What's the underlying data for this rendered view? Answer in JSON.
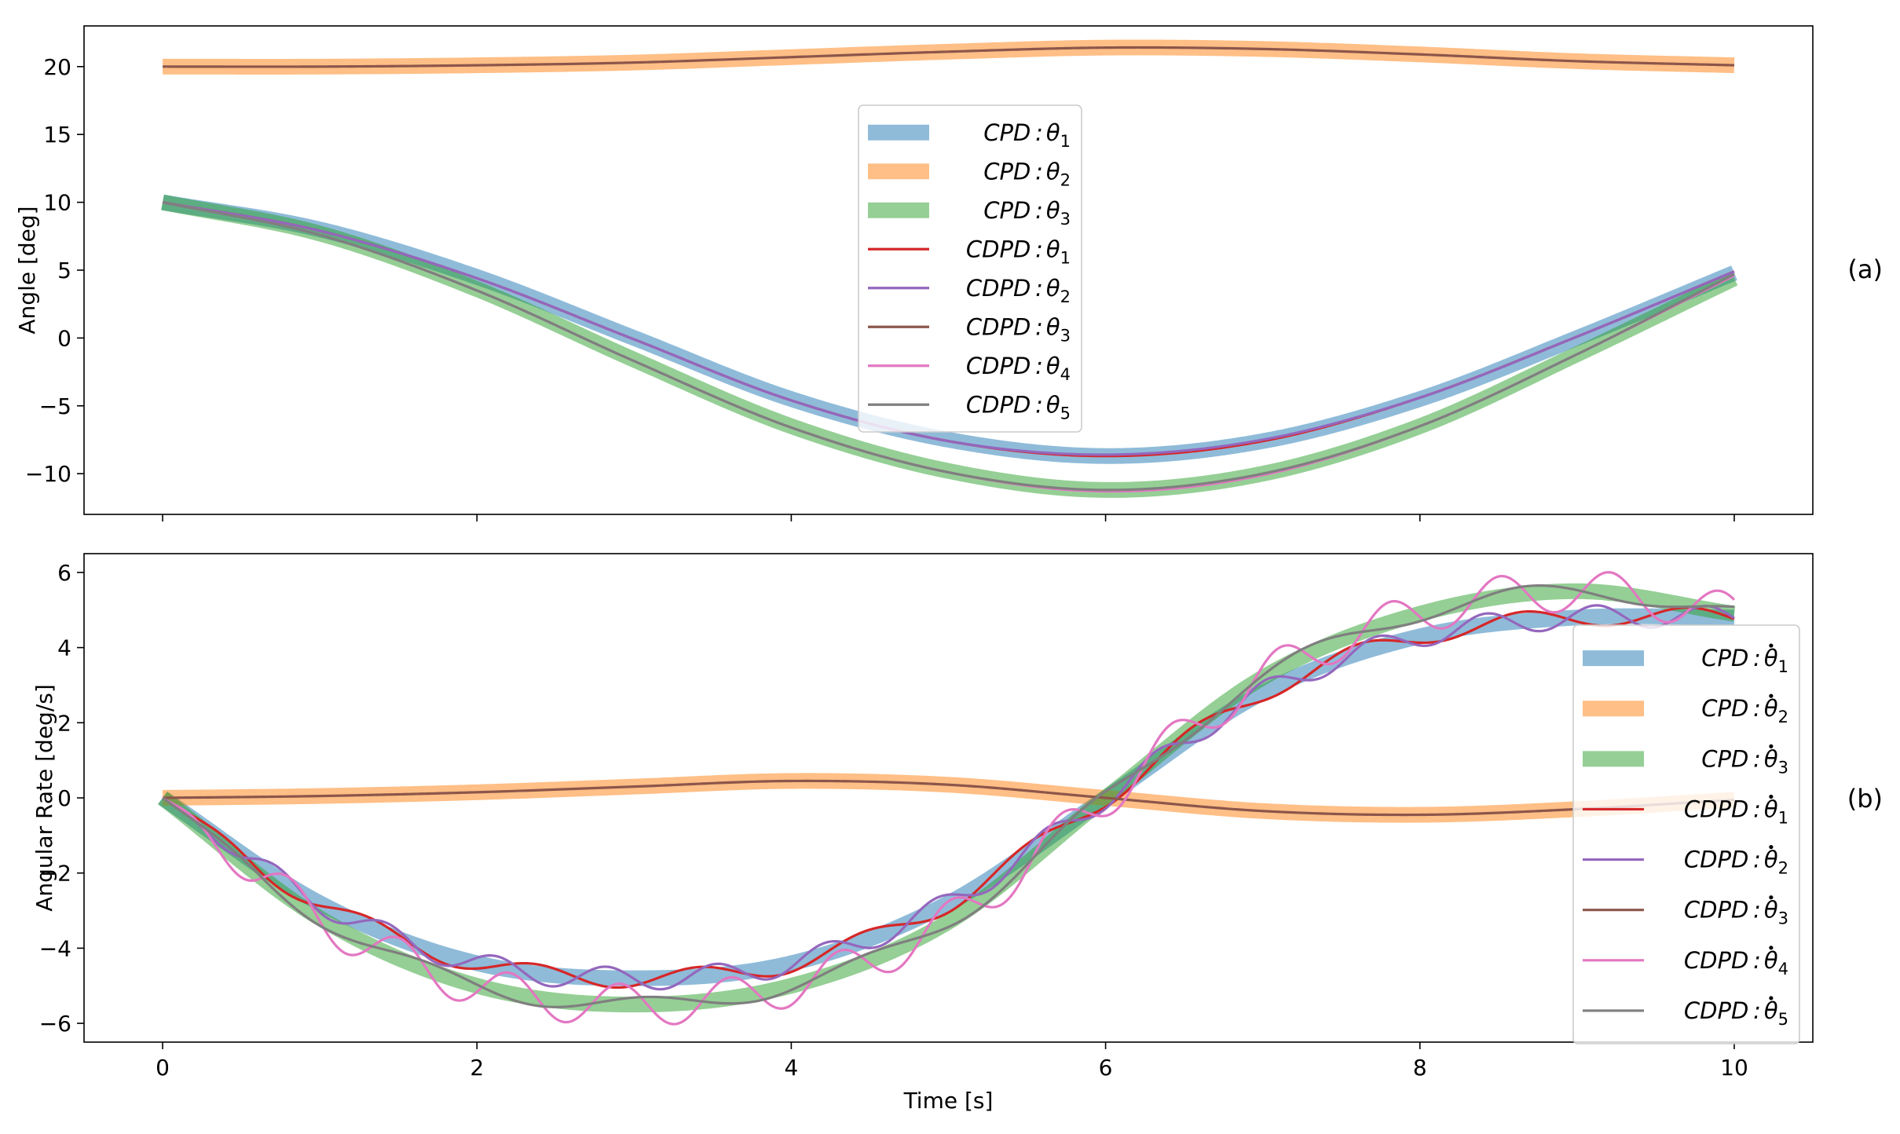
{
  "figure": {
    "panel_tags": [
      "(a)",
      "(b)"
    ]
  },
  "colors": {
    "cpd_theta1": "#1f77b4",
    "cpd_theta2": "#ff7f0e",
    "cpd_theta3": "#2ca02c",
    "cdpd_theta1": "#d62728",
    "cdpd_theta2": "#9467bd",
    "cdpd_theta3": "#8c564b",
    "cdpd_theta4": "#e377c2",
    "cdpd_theta5": "#7f7f7f"
  },
  "chart_data": [
    {
      "type": "line",
      "panel": "(a)",
      "title": "",
      "xlabel": "",
      "ylabel": "Angle [deg]",
      "xlim": [
        -0.5,
        10.5
      ],
      "ylim": [
        -13,
        23
      ],
      "x_ticks": [
        0,
        2,
        4,
        6,
        8,
        10
      ],
      "x_tick_labels_shown": false,
      "y_ticks": [
        -10,
        -5,
        0,
        5,
        10,
        15,
        20
      ],
      "y_tick_labels": [
        "−10",
        "−5",
        "0",
        "5",
        "10",
        "15",
        "20"
      ],
      "grid": false,
      "legend": {
        "placement": "upper center",
        "rows": 8
      },
      "x": [
        0,
        1,
        2,
        3,
        4,
        5,
        6,
        7,
        8,
        9,
        10
      ],
      "series": [
        {
          "name": "CPD : θ₁",
          "label_base": "CPD",
          "symbol": "θ",
          "sub": "1",
          "dot": false,
          "style": "thick",
          "color_key": "cpd_theta1",
          "values": [
            10.0,
            8.0,
            4.5,
            0.0,
            -4.5,
            -7.5,
            -8.7,
            -7.6,
            -4.5,
            0.0,
            4.8
          ]
        },
        {
          "name": "CPD : θ₂",
          "label_base": "CPD",
          "symbol": "θ",
          "sub": "2",
          "dot": false,
          "style": "thick",
          "color_key": "cpd_theta2",
          "values": [
            20.0,
            20.0,
            20.1,
            20.3,
            20.7,
            21.1,
            21.4,
            21.3,
            20.9,
            20.4,
            20.1
          ]
        },
        {
          "name": "CPD : θ₃",
          "label_base": "CPD",
          "symbol": "θ",
          "sub": "3",
          "dot": false,
          "style": "thick",
          "color_key": "cpd_theta3",
          "values": [
            10.0,
            7.7,
            3.6,
            -1.6,
            -6.5,
            -9.8,
            -11.2,
            -10.0,
            -6.5,
            -1.2,
            4.4
          ]
        },
        {
          "name": "CDPD : θ₁",
          "label_base": "CDPD",
          "symbol": "θ",
          "sub": "1",
          "dot": false,
          "style": "thin",
          "color_key": "cdpd_theta1",
          "values": [
            10.0,
            7.9,
            4.4,
            -0.1,
            -4.6,
            -7.6,
            -8.7,
            -7.6,
            -4.4,
            0.1,
            4.9
          ]
        },
        {
          "name": "CDPD : θ₂",
          "label_base": "CDPD",
          "symbol": "θ",
          "sub": "2",
          "dot": false,
          "style": "thin",
          "color_key": "cdpd_theta2",
          "values": [
            10.0,
            7.9,
            4.4,
            -0.1,
            -4.6,
            -7.6,
            -8.6,
            -7.5,
            -4.4,
            0.1,
            4.9
          ]
        },
        {
          "name": "CDPD : θ₃",
          "label_base": "CDPD",
          "symbol": "θ",
          "sub": "3",
          "dot": false,
          "style": "thin",
          "color_key": "cdpd_theta3",
          "values": [
            20.0,
            20.0,
            20.1,
            20.3,
            20.7,
            21.1,
            21.4,
            21.3,
            20.9,
            20.4,
            20.1
          ]
        },
        {
          "name": "CDPD : θ₄",
          "label_base": "CDPD",
          "symbol": "θ",
          "sub": "4",
          "dot": false,
          "style": "thin",
          "color_key": "cdpd_theta4",
          "values": [
            10.0,
            7.6,
            3.5,
            -1.7,
            -6.6,
            -9.9,
            -11.3,
            -10.1,
            -6.5,
            -1.2,
            4.6
          ]
        },
        {
          "name": "CDPD : θ₅",
          "label_base": "CDPD",
          "symbol": "θ",
          "sub": "5",
          "dot": false,
          "style": "thin",
          "color_key": "cdpd_theta5",
          "values": [
            10.0,
            7.6,
            3.5,
            -1.7,
            -6.6,
            -9.9,
            -11.2,
            -10.0,
            -6.5,
            -1.2,
            4.7
          ]
        }
      ]
    },
    {
      "type": "line",
      "panel": "(b)",
      "title": "",
      "xlabel": "Time [s]",
      "ylabel": "Angular Rate [deg/s]",
      "xlim": [
        -0.5,
        10.5
      ],
      "ylim": [
        -6.5,
        6.5
      ],
      "x_ticks": [
        0,
        2,
        4,
        6,
        8,
        10
      ],
      "x_tick_labels": [
        "0",
        "2",
        "4",
        "6",
        "8",
        "10"
      ],
      "y_ticks": [
        -6,
        -4,
        -2,
        0,
        2,
        4,
        6
      ],
      "y_tick_labels": [
        "−6",
        "−4",
        "−2",
        "0",
        "2",
        "4",
        "6"
      ],
      "grid": false,
      "legend": {
        "placement": "lower right",
        "rows": 8
      },
      "x": [
        0,
        1,
        2,
        3,
        4,
        5,
        6,
        7,
        8,
        9,
        10
      ],
      "series": [
        {
          "name": "CPD : θ̇₁",
          "label_base": "CPD",
          "symbol": "θ",
          "sub": "1",
          "dot": true,
          "style": "thick",
          "color_key": "cpd_theta1",
          "values": [
            0.0,
            -2.8,
            -4.4,
            -4.8,
            -4.4,
            -2.8,
            0.0,
            2.8,
            4.3,
            4.8,
            4.8
          ]
        },
        {
          "name": "CPD : θ̇₂",
          "label_base": "CPD",
          "symbol": "θ",
          "sub": "2",
          "dot": true,
          "style": "thick",
          "color_key": "cpd_theta2",
          "values": [
            0.0,
            0.05,
            0.15,
            0.3,
            0.45,
            0.35,
            0.0,
            -0.35,
            -0.45,
            -0.3,
            -0.05
          ]
        },
        {
          "name": "CPD : θ̇₃",
          "label_base": "CPD",
          "symbol": "θ",
          "sub": "3",
          "dot": true,
          "style": "thick",
          "color_key": "cpd_theta3",
          "values": [
            0.0,
            -3.2,
            -5.0,
            -5.5,
            -5.0,
            -3.3,
            0.0,
            3.2,
            4.9,
            5.5,
            4.9
          ]
        },
        {
          "name": "CDPD : θ̇₁",
          "label_base": "CDPD",
          "symbol": "θ",
          "sub": "1",
          "dot": true,
          "style": "thin",
          "color_key": "cdpd_theta1",
          "values": [
            0.0,
            -2.8,
            -4.4,
            -4.8,
            -4.4,
            -2.8,
            0.0,
            2.8,
            4.3,
            4.8,
            4.8
          ],
          "osc": {
            "amp": 0.25,
            "period": 1.05,
            "phase": 0.0
          }
        },
        {
          "name": "CDPD : θ̇₂",
          "label_base": "CDPD",
          "symbol": "θ",
          "sub": "2",
          "dot": true,
          "style": "thin",
          "color_key": "cdpd_theta2",
          "values": [
            0.0,
            -2.8,
            -4.4,
            -4.8,
            -4.4,
            -2.8,
            0.0,
            2.8,
            4.3,
            4.8,
            4.8
          ],
          "osc": {
            "amp": 0.3,
            "period": 0.7,
            "phase": 1.4
          }
        },
        {
          "name": "CDPD : θ̇₃",
          "label_base": "CDPD",
          "symbol": "θ",
          "sub": "3",
          "dot": true,
          "style": "thin",
          "color_key": "cdpd_theta3",
          "values": [
            0.0,
            0.05,
            0.15,
            0.3,
            0.45,
            0.35,
            0.0,
            -0.35,
            -0.45,
            -0.3,
            -0.05
          ]
        },
        {
          "name": "CDPD : θ̇₄",
          "label_base": "CDPD",
          "symbol": "θ",
          "sub": "4",
          "dot": true,
          "style": "thin",
          "color_key": "cdpd_theta4",
          "values": [
            0.0,
            -3.2,
            -5.0,
            -5.5,
            -5.0,
            -3.3,
            0.0,
            3.2,
            4.9,
            5.5,
            4.9
          ],
          "osc": {
            "amp": 0.55,
            "period": 0.7,
            "phase": 0.6
          }
        },
        {
          "name": "CDPD : θ̇₅",
          "label_base": "CDPD",
          "symbol": "θ",
          "sub": "5",
          "dot": true,
          "style": "thin",
          "color_key": "cdpd_theta5",
          "values": [
            0.0,
            -3.2,
            -5.0,
            -5.5,
            -5.0,
            -3.3,
            0.0,
            3.2,
            4.9,
            5.5,
            4.9
          ],
          "osc": {
            "amp": 0.2,
            "period": 1.4,
            "phase": 0.3
          }
        }
      ]
    }
  ]
}
